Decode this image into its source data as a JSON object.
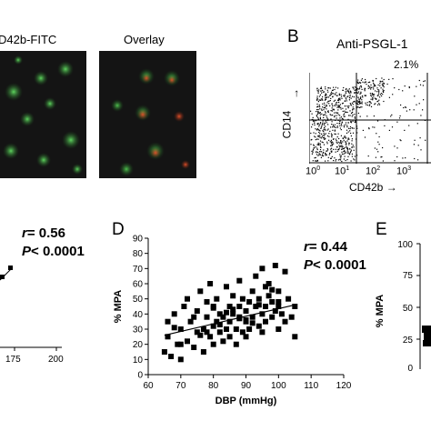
{
  "panel_a": {
    "label_cd42b": "D42b-FITC",
    "label_overlay": "Overlay"
  },
  "panel_b": {
    "letter": "B",
    "title": "Anti-PSGL-1",
    "quadrant_pct": "2.1%",
    "y_axis": "CD14",
    "x_axis": "CD42b",
    "arrow": "→",
    "ticks": [
      "10",
      "10",
      "10",
      "10"
    ],
    "tick_exps": [
      "0",
      "1",
      "2",
      "3"
    ]
  },
  "panel_c": {
    "r_label": "r",
    "r_value": "= 0.56",
    "p_label": "P",
    "p_value": "< 0.0001",
    "x_ticks": [
      "175",
      "200"
    ]
  },
  "panel_d": {
    "letter": "D",
    "r_label": "r",
    "r_value": "= 0.44",
    "p_label": "P",
    "p_value": "< 0.0001"
  },
  "panel_e": {
    "letter": "E",
    "y_axis_label": "% MPA",
    "y_ticks": [
      "100",
      "75",
      "50",
      "25",
      "0"
    ]
  },
  "chart_data": [
    {
      "type": "scatter",
      "title": "",
      "xlabel": "DBP (mmHg)",
      "ylabel": "% MPA",
      "xlim": [
        60,
        120
      ],
      "ylim": [
        0,
        90
      ],
      "x_ticks": [
        60,
        70,
        80,
        90,
        100,
        110,
        120
      ],
      "y_ticks": [
        0,
        10,
        20,
        30,
        40,
        50,
        60,
        70,
        80,
        90
      ],
      "trend_line": [
        [
          65,
          26
        ],
        [
          105,
          46
        ]
      ],
      "x": [
        65,
        66,
        66,
        67,
        68,
        69,
        70,
        70,
        71,
        72,
        72,
        73,
        74,
        75,
        75,
        76,
        77,
        77,
        78,
        78,
        79,
        79,
        80,
        80,
        80,
        81,
        81,
        82,
        82,
        83,
        83,
        84,
        84,
        85,
        85,
        85,
        86,
        86,
        87,
        87,
        88,
        88,
        88,
        89,
        89,
        90,
        90,
        90,
        91,
        91,
        92,
        92,
        93,
        93,
        94,
        94,
        95,
        95,
        95,
        96,
        96,
        97,
        97,
        98,
        98,
        99,
        99,
        100,
        100,
        100,
        101,
        102,
        102,
        103,
        104,
        105,
        105,
        70,
        74,
        78,
        82,
        86,
        90,
        94,
        98,
        68,
        76,
        84,
        92,
        100,
        88,
        80,
        96
      ],
      "y": [
        15,
        25,
        35,
        12,
        40,
        20,
        10,
        30,
        45,
        22,
        50,
        35,
        18,
        28,
        42,
        55,
        30,
        15,
        38,
        48,
        25,
        60,
        32,
        20,
        45,
        35,
        50,
        28,
        40,
        22,
        38,
        58,
        30,
        45,
        25,
        35,
        40,
        52,
        30,
        20,
        45,
        38,
        62,
        28,
        50,
        35,
        42,
        25,
        48,
        30,
        55,
        38,
        45,
        65,
        32,
        50,
        40,
        28,
        70,
        45,
        35,
        52,
        60,
        38,
        48,
        42,
        72,
        30,
        45,
        55,
        40,
        35,
        68,
        50,
        38,
        45,
        25,
        20,
        38,
        28,
        33,
        43,
        36,
        46,
        56,
        31,
        26,
        41,
        34,
        48,
        37,
        44,
        58
      ]
    },
    {
      "type": "scatter",
      "title": "",
      "xlabel": "CD42b",
      "ylabel": "CD14",
      "x_scale": "log",
      "y_scale": "log",
      "xlim": [
        1,
        1000
      ],
      "quadrant_upper_right_pct": 2.1
    }
  ]
}
